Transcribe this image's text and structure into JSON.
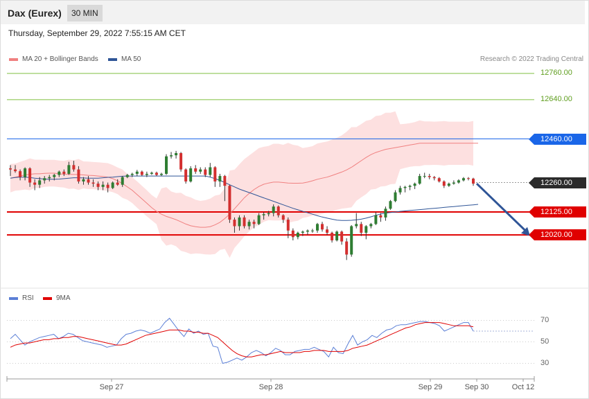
{
  "header": {
    "instrument": "Dax (Eurex)",
    "timeframe": "30 MIN"
  },
  "timestamp": "Thursday, September 29, 2022 7:55:15 AM CET",
  "legend": {
    "ma20_label": "MA 20 + Bollinger Bands",
    "ma50_label": "MA 50",
    "ma20_color": "#f08080",
    "ma50_color": "#2f5597"
  },
  "copyright": "Research © 2022 Trading Central",
  "rsi_legend": {
    "rsi_label": "RSI",
    "ma9_label": "9MA",
    "rsi_color": "#5b7fd6",
    "ma9_color": "#e00000"
  },
  "chart_data": [
    {
      "type": "candlestick",
      "title": "Dax (Eurex)",
      "timeframe": "30 MIN",
      "ylim": [
        11795,
        12795
      ],
      "x_labels": [
        "Sep 27",
        "Sep 28",
        "Sep 29",
        "Sep 30",
        "Oct 12"
      ],
      "levels": [
        {
          "value": 12760,
          "label": "12760.00",
          "style": "resistance",
          "color": "#7fbf3f"
        },
        {
          "value": 12640,
          "label": "12640.00",
          "style": "resistance",
          "color": "#7fbf3f"
        },
        {
          "value": 12460,
          "label": "12460.00",
          "style": "pivot",
          "color": "#1a66e8"
        },
        {
          "value": 12260,
          "label": "12260.00",
          "style": "last-price",
          "color": "#2b2b2b"
        },
        {
          "value": 12125,
          "label": "12125.00",
          "style": "support",
          "color": "#e00000"
        },
        {
          "value": 12020,
          "label": "12020.00",
          "style": "support",
          "color": "#e00000"
        }
      ],
      "projection": {
        "from": 12255,
        "to": 12015,
        "color": "#2f5597"
      },
      "candles_ohlc": [
        [
          12325,
          12340,
          12290,
          12320
        ],
        [
          12320,
          12340,
          12305,
          12312
        ],
        [
          12312,
          12320,
          12270,
          12285
        ],
        [
          12285,
          12330,
          12270,
          12325
        ],
        [
          12325,
          12330,
          12240,
          12260
        ],
        [
          12260,
          12275,
          12225,
          12250
        ],
        [
          12250,
          12285,
          12235,
          12270
        ],
        [
          12270,
          12290,
          12255,
          12280
        ],
        [
          12280,
          12295,
          12265,
          12285
        ],
        [
          12285,
          12300,
          12270,
          12295
        ],
        [
          12295,
          12315,
          12285,
          12310
        ],
        [
          12310,
          12320,
          12290,
          12300
        ],
        [
          12300,
          12355,
          12295,
          12340
        ],
        [
          12340,
          12360,
          12310,
          12320
        ],
        [
          12320,
          12335,
          12255,
          12265
        ],
        [
          12265,
          12285,
          12250,
          12275
        ],
        [
          12275,
          12290,
          12250,
          12260
        ],
        [
          12260,
          12275,
          12240,
          12255
        ],
        [
          12255,
          12265,
          12225,
          12240
        ],
        [
          12240,
          12265,
          12225,
          12250
        ],
        [
          12250,
          12260,
          12215,
          12235
        ],
        [
          12235,
          12265,
          12230,
          12260
        ],
        [
          12260,
          12275,
          12245,
          12250
        ],
        [
          12250,
          12290,
          12240,
          12285
        ],
        [
          12285,
          12300,
          12280,
          12295
        ],
        [
          12295,
          12305,
          12285,
          12300
        ],
        [
          12300,
          12318,
          12290,
          12310
        ],
        [
          12310,
          12315,
          12290,
          12295
        ],
        [
          12295,
          12310,
          12285,
          12300
        ],
        [
          12300,
          12310,
          12295,
          12305
        ],
        [
          12305,
          12310,
          12290,
          12295
        ],
        [
          12295,
          12305,
          12290,
          12300
        ],
        [
          12300,
          12390,
          12295,
          12380
        ],
        [
          12380,
          12400,
          12370,
          12385
        ],
        [
          12385,
          12405,
          12370,
          12395
        ],
        [
          12395,
          12400,
          12310,
          12320
        ],
        [
          12320,
          12325,
          12255,
          12265
        ],
        [
          12265,
          12335,
          12260,
          12325
        ],
        [
          12325,
          12340,
          12300,
          12310
        ],
        [
          12310,
          12330,
          12300,
          12320
        ],
        [
          12320,
          12330,
          12285,
          12295
        ],
        [
          12295,
          12350,
          12285,
          12330
        ],
        [
          12330,
          12335,
          12240,
          12265
        ],
        [
          12265,
          12300,
          12240,
          12290
        ],
        [
          12290,
          12295,
          12175,
          12245
        ],
        [
          12245,
          12250,
          12075,
          12090
        ],
        [
          12090,
          12100,
          12030,
          12060
        ],
        [
          12060,
          12110,
          12040,
          12100
        ],
        [
          12100,
          12110,
          12050,
          12060
        ],
        [
          12060,
          12090,
          12045,
          12080
        ],
        [
          12080,
          12090,
          12050,
          12070
        ],
        [
          12070,
          12120,
          12065,
          12110
        ],
        [
          12110,
          12125,
          12090,
          12115
        ],
        [
          12115,
          12130,
          12105,
          12120
        ],
        [
          12120,
          12160,
          12105,
          12150
        ],
        [
          12150,
          12155,
          12100,
          12110
        ],
        [
          12110,
          12115,
          12075,
          12090
        ],
        [
          12090,
          12100,
          12005,
          12040
        ],
        [
          12040,
          12050,
          11995,
          12010
        ],
        [
          12010,
          12035,
          12000,
          12030
        ],
        [
          12030,
          12040,
          12015,
          12035
        ],
        [
          12035,
          12045,
          12020,
          12040
        ],
        [
          12040,
          12048,
          12030,
          12040
        ],
        [
          12040,
          12075,
          12030,
          12070
        ],
        [
          12070,
          12080,
          12035,
          12045
        ],
        [
          12045,
          12060,
          12020,
          12030
        ],
        [
          12030,
          12035,
          11985,
          11995
        ],
        [
          11995,
          12040,
          11990,
          12035
        ],
        [
          12035,
          12040,
          11975,
          11990
        ],
        [
          11990,
          12005,
          11905,
          11930
        ],
        [
          11930,
          12065,
          11920,
          12060
        ],
        [
          12060,
          12120,
          12050,
          12070
        ],
        [
          12070,
          12080,
          12015,
          12030
        ],
        [
          12030,
          12065,
          12000,
          12060
        ],
        [
          12060,
          12075,
          12050,
          12070
        ],
        [
          12070,
          12125,
          12065,
          12110
        ],
        [
          12110,
          12120,
          12080,
          12100
        ],
        [
          12100,
          12150,
          12085,
          12140
        ],
        [
          12140,
          12180,
          12135,
          12175
        ],
        [
          12175,
          12225,
          12170,
          12215
        ],
        [
          12215,
          12245,
          12205,
          12235
        ],
        [
          12235,
          12245,
          12215,
          12240
        ],
        [
          12240,
          12250,
          12225,
          12245
        ],
        [
          12245,
          12260,
          12230,
          12255
        ],
        [
          12255,
          12300,
          12250,
          12290
        ],
        [
          12290,
          12305,
          12280,
          12290
        ],
        [
          12290,
          12300,
          12275,
          12285
        ],
        [
          12285,
          12290,
          12270,
          12280
        ],
        [
          12280,
          12285,
          12260,
          12265
        ],
        [
          12265,
          12270,
          12235,
          12245
        ],
        [
          12245,
          12260,
          12240,
          12255
        ],
        [
          12255,
          12270,
          12250,
          12260
        ],
        [
          12260,
          12275,
          12255,
          12270
        ],
        [
          12270,
          12285,
          12265,
          12280
        ],
        [
          12280,
          12285,
          12270,
          12278
        ],
        [
          12278,
          12282,
          12245,
          12255
        ]
      ],
      "series": [
        {
          "name": "MA 20 + Bollinger Bands",
          "values": [
            12280,
            12285,
            12290,
            12295,
            12298,
            12300,
            12300,
            12302,
            12303,
            12303,
            12300,
            12298,
            12298,
            12297,
            12297,
            12295,
            12293,
            12292,
            12290,
            12288,
            12285,
            12278,
            12268,
            12255,
            12240,
            12225,
            12205,
            12185,
            12165,
            12145,
            12128,
            12115,
            12105,
            12098,
            12090,
            12080,
            12070,
            12062,
            12058,
            12055,
            12055,
            12058,
            12066,
            12078,
            12095,
            12115,
            12140,
            12165,
            12190,
            12210,
            12228,
            12242,
            12252,
            12258,
            12262,
            12262,
            12260,
            12258,
            12257,
            12257,
            12258,
            12262,
            12268,
            12275,
            12280,
            12285,
            12292,
            12300,
            12308,
            12318,
            12330,
            12345,
            12360,
            12375,
            12388,
            12398,
            12405,
            12412,
            12416,
            12420,
            12424,
            12428,
            12432,
            12436,
            12440,
            12440,
            12440,
            12440,
            12440,
            12440,
            12440,
            12440,
            12440,
            12440,
            12440,
            12440,
            12440
          ]
        },
        {
          "name": "MA 50",
          "values": [
            12280,
            12283,
            12285,
            12285,
            12283,
            12280,
            12278,
            12276,
            12275,
            12275,
            12276,
            12278,
            12280,
            12282,
            12282,
            12281,
            12280,
            12280,
            12280,
            12282,
            12284,
            12285,
            12287,
            12289,
            12290,
            12290,
            12290,
            12290,
            12290,
            12290,
            12290,
            12290,
            12290,
            12290,
            12290,
            12290,
            12290,
            12290,
            12290,
            12290,
            12290,
            12285,
            12278,
            12270,
            12260,
            12250,
            12240,
            12230,
            12222,
            12214,
            12206,
            12198,
            12190,
            12182,
            12174,
            12166,
            12158,
            12150,
            12142,
            12135,
            12128,
            12122,
            12115,
            12108,
            12102,
            12097,
            12092,
            12088,
            12086,
            12086,
            12087,
            12089,
            12092,
            12097,
            12103,
            12110,
            12116,
            12120,
            12123,
            12125,
            12128,
            12130,
            12132,
            12134,
            12136,
            12138,
            12140,
            12142,
            12144,
            12146,
            12148,
            12150,
            12152,
            12154,
            12156,
            12158,
            12160
          ]
        }
      ]
    },
    {
      "type": "line",
      "title": "RSI",
      "ylim": [
        20,
        80
      ],
      "y_ticks": [
        "70",
        "50",
        "30"
      ],
      "series": [
        {
          "name": "RSI",
          "values": [
            53,
            57,
            52,
            47,
            50,
            52,
            54,
            55,
            56,
            57,
            53,
            55,
            58,
            57,
            54,
            51,
            50,
            49,
            48,
            47,
            45,
            46,
            47,
            53,
            57,
            58,
            60,
            61,
            60,
            58,
            60,
            62,
            68,
            72,
            66,
            60,
            55,
            62,
            58,
            60,
            57,
            58,
            46,
            45,
            30,
            31,
            33,
            35,
            33,
            36,
            40,
            42,
            40,
            37,
            40,
            44,
            42,
            38,
            38,
            41,
            42,
            43,
            43,
            45,
            43,
            41,
            36,
            45,
            40,
            39,
            48,
            56,
            47,
            50,
            52,
            56,
            54,
            58,
            61,
            62,
            65,
            66,
            66,
            67,
            68,
            69,
            69,
            68,
            67,
            65,
            60,
            62,
            64,
            66,
            68,
            68,
            60
          ]
        },
        {
          "name": "9MA",
          "values": [
            45,
            47,
            48,
            49,
            49,
            50,
            51,
            52,
            52,
            53,
            53,
            54,
            54,
            55,
            55,
            54,
            53,
            52,
            51,
            50,
            49,
            48,
            47,
            47,
            48,
            50,
            52,
            54,
            56,
            57,
            58,
            59,
            60,
            61,
            61,
            61,
            60,
            60,
            59,
            59,
            58,
            58,
            56,
            54,
            50,
            46,
            42,
            39,
            37,
            36,
            36,
            37,
            38,
            38,
            39,
            40,
            41,
            40,
            40,
            40,
            40,
            41,
            41,
            42,
            42,
            42,
            41,
            41,
            41,
            41,
            42,
            44,
            45,
            46,
            47,
            49,
            51,
            53,
            55,
            57,
            59,
            61,
            63,
            64,
            66,
            67,
            68,
            68,
            68,
            68,
            67,
            66,
            65,
            65,
            65,
            65,
            64
          ]
        }
      ]
    }
  ]
}
